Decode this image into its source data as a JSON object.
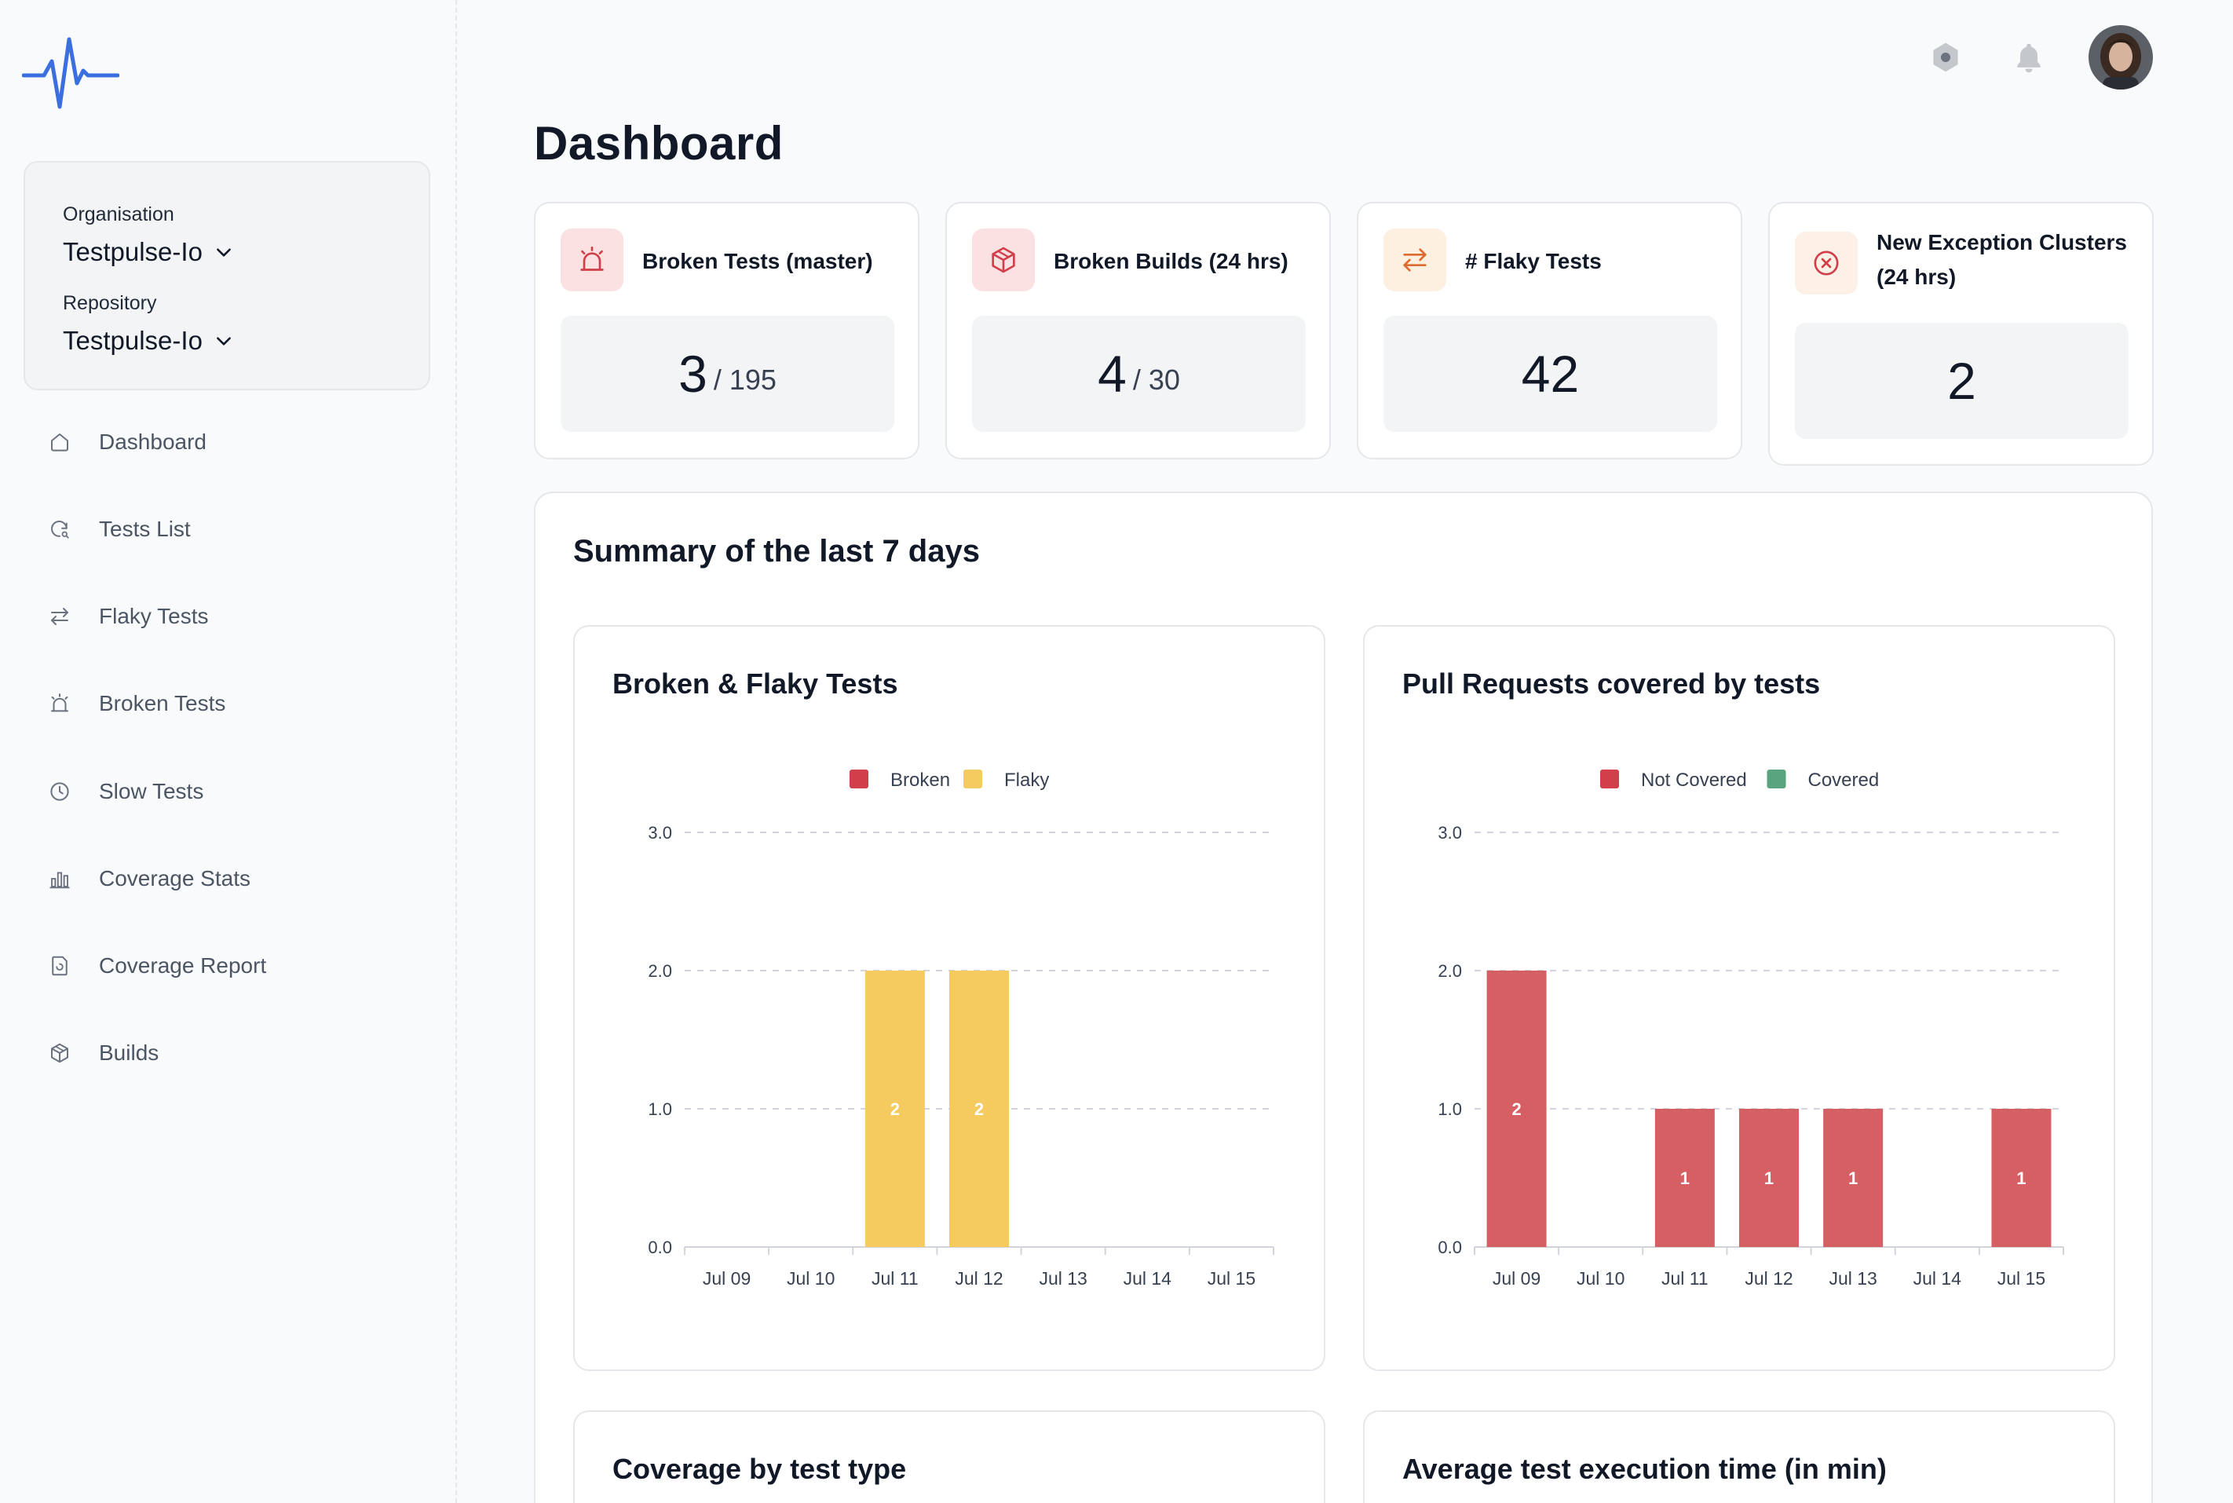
{
  "sidebar": {
    "organisation_label": "Organisation",
    "organisation_value": "Testpulse-Io",
    "repository_label": "Repository",
    "repository_value": "Testpulse-Io",
    "items": [
      {
        "label": "Dashboard",
        "icon": "home-icon"
      },
      {
        "label": "Tests List",
        "icon": "refresh-search-icon"
      },
      {
        "label": "Flaky Tests",
        "icon": "arrows-swap-icon"
      },
      {
        "label": "Broken Tests",
        "icon": "alarm-icon"
      },
      {
        "label": "Slow Tests",
        "icon": "clock-icon"
      },
      {
        "label": "Coverage Stats",
        "icon": "bar-chart-icon"
      },
      {
        "label": "Coverage Report",
        "icon": "document-icon"
      },
      {
        "label": "Builds",
        "icon": "cube-icon"
      }
    ]
  },
  "header": {
    "settings_icon": "hexagon-settings-icon",
    "bell_icon": "bell-icon",
    "avatar_icon": "user-avatar"
  },
  "page": {
    "title": "Dashboard"
  },
  "stats": [
    {
      "title": "Broken Tests (master)",
      "value": "3",
      "total": "/ 195",
      "icon": "alarm-icon"
    },
    {
      "title": "Broken Builds (24 hrs)",
      "value": "4",
      "total": "/ 30",
      "icon": "cube-icon"
    },
    {
      "title": "# Flaky Tests",
      "value": "42",
      "icon": "arrows-swap-icon"
    },
    {
      "title": "New Exception Clusters (24 hrs)",
      "value": "2",
      "icon": "x-circle-icon"
    }
  ],
  "summary": {
    "title": "Summary of the last 7 days",
    "lower_titles": [
      "Coverage by test type",
      "Average test execution time (in min)"
    ]
  },
  "colors": {
    "accent": "#3b6fe0",
    "broken": "#d65f63",
    "flaky": "#f5cb5f",
    "covered": "#5aa57f",
    "legend_broken": "#d1404a",
    "legend_not_covered": "#d1404a"
  },
  "chart_data": [
    {
      "type": "bar",
      "title": "Broken & Flaky Tests",
      "categories": [
        "Jul 09",
        "Jul 10",
        "Jul 11",
        "Jul 12",
        "Jul 13",
        "Jul 14",
        "Jul 15"
      ],
      "series": [
        {
          "name": "Broken",
          "values": [
            0,
            0,
            0,
            0,
            0,
            0,
            0
          ]
        },
        {
          "name": "Flaky",
          "values": [
            0,
            0,
            2,
            2,
            0,
            0,
            0
          ]
        }
      ],
      "ylim": [
        0,
        3
      ],
      "yticks": [
        "0.0",
        "1.0",
        "2.0",
        "3.0"
      ],
      "legend": "top-center",
      "stacked": true
    },
    {
      "type": "bar",
      "title": "Pull Requests covered by tests",
      "categories": [
        "Jul 09",
        "Jul 10",
        "Jul 11",
        "Jul 12",
        "Jul 13",
        "Jul 14",
        "Jul 15"
      ],
      "series": [
        {
          "name": "Not Covered",
          "values": [
            2,
            0,
            1,
            1,
            1,
            0,
            1
          ]
        },
        {
          "name": "Covered",
          "values": [
            0,
            0,
            0,
            0,
            0,
            0,
            0
          ]
        }
      ],
      "ylim": [
        0,
        3
      ],
      "yticks": [
        "0.0",
        "1.0",
        "2.0",
        "3.0"
      ],
      "legend": "top-center",
      "stacked": true
    }
  ]
}
